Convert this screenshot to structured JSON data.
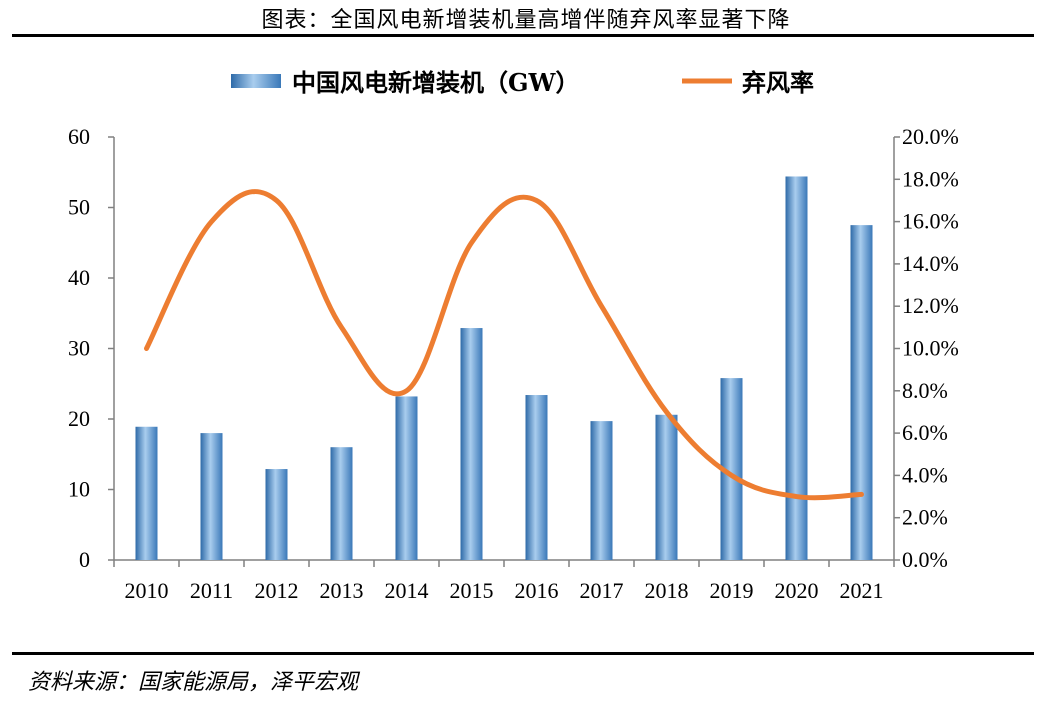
{
  "header": {
    "title": "图表：全国风电新增装机量高增伴随弃风率显著下降"
  },
  "footer": {
    "source": "资料来源：国家能源局，泽平宏观"
  },
  "chart_data": {
    "type": "bar",
    "categories": [
      "2010",
      "2011",
      "2012",
      "2013",
      "2014",
      "2015",
      "2016",
      "2017",
      "2018",
      "2019",
      "2020",
      "2021"
    ],
    "series": [
      {
        "name": "中国风电新增装机（GW）",
        "type": "bar",
        "axis": "left",
        "color": "#4a86c5",
        "values": [
          18.9,
          18.0,
          12.9,
          16.0,
          23.2,
          32.9,
          23.4,
          19.7,
          20.6,
          25.8,
          54.4,
          47.5
        ]
      },
      {
        "name": "弃风率",
        "type": "line",
        "axis": "right",
        "color": "#ed7d31",
        "values": [
          0.1,
          0.16,
          0.17,
          0.11,
          0.08,
          0.15,
          0.17,
          0.12,
          0.07,
          0.04,
          0.03,
          0.031
        ]
      }
    ],
    "y_left": {
      "min": 0,
      "max": 60,
      "ticks": [
        "0",
        "10",
        "20",
        "30",
        "40",
        "50",
        "60"
      ]
    },
    "y_right": {
      "min": 0,
      "max": 0.2,
      "ticks": [
        "0.0%",
        "2.0%",
        "4.0%",
        "6.0%",
        "8.0%",
        "10.0%",
        "12.0%",
        "14.0%",
        "16.0%",
        "18.0%",
        "20.0%"
      ]
    },
    "grid": false,
    "legend": "top-center"
  }
}
